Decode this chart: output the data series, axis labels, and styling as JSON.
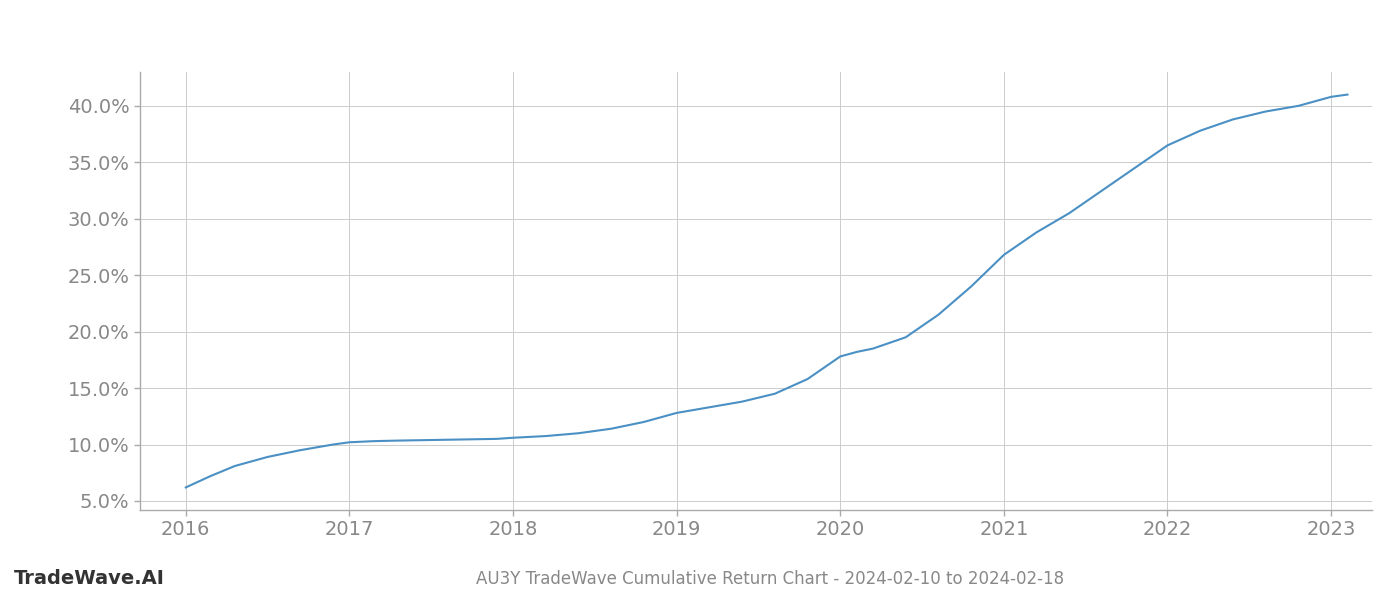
{
  "title": "AU3Y TradeWave Cumulative Return Chart - 2024-02-10 to 2024-02-18",
  "watermark": "TradeWave.AI",
  "line_color": "#4a90c4",
  "background_color": "#ffffff",
  "grid_color": "#cccccc",
  "text_color": "#888888",
  "watermark_color": "#333333",
  "x_values": [
    2016.0,
    2016.15,
    2016.3,
    2016.5,
    2016.7,
    2016.9,
    2017.0,
    2017.15,
    2017.3,
    2017.5,
    2017.7,
    2017.9,
    2018.0,
    2018.2,
    2018.4,
    2018.6,
    2018.8,
    2019.0,
    2019.2,
    2019.4,
    2019.6,
    2019.8,
    2020.0,
    2020.1,
    2020.2,
    2020.4,
    2020.6,
    2020.8,
    2021.0,
    2021.2,
    2021.4,
    2021.6,
    2021.8,
    2022.0,
    2022.2,
    2022.4,
    2022.6,
    2022.8,
    2023.0,
    2023.1
  ],
  "y_values": [
    6.2,
    7.2,
    8.1,
    8.9,
    9.5,
    10.0,
    10.2,
    10.3,
    10.35,
    10.4,
    10.45,
    10.5,
    10.6,
    10.75,
    11.0,
    11.4,
    12.0,
    12.8,
    13.3,
    13.8,
    14.5,
    15.8,
    17.8,
    18.2,
    18.5,
    19.5,
    21.5,
    24.0,
    26.8,
    28.8,
    30.5,
    32.5,
    34.5,
    36.5,
    37.8,
    38.8,
    39.5,
    40.0,
    40.8,
    41.0
  ],
  "yticks": [
    5.0,
    10.0,
    15.0,
    20.0,
    25.0,
    30.0,
    35.0,
    40.0
  ],
  "xticks": [
    2016,
    2017,
    2018,
    2019,
    2020,
    2021,
    2022,
    2023
  ],
  "ylim": [
    4.2,
    43.0
  ],
  "xlim": [
    2015.72,
    2023.25
  ],
  "line_width": 1.5,
  "tick_fontsize": 14,
  "watermark_fontsize": 14,
  "title_fontsize": 12
}
